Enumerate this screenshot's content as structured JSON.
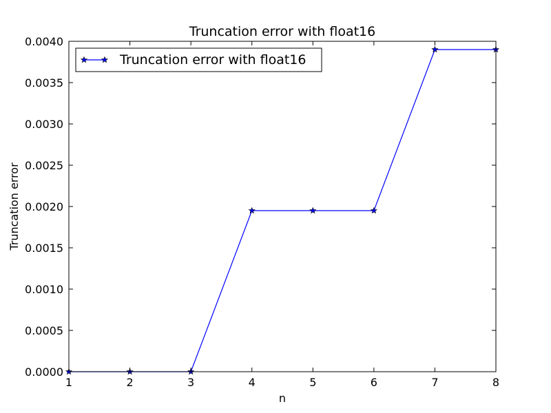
{
  "chart_data": {
    "type": "line",
    "title": "Truncation error with float16",
    "xlabel": "n",
    "ylabel": "Truncation error",
    "xlim": [
      1,
      8
    ],
    "ylim": [
      0,
      0.004
    ],
    "x_ticks": [
      "1",
      "2",
      "3",
      "4",
      "5",
      "6",
      "7",
      "8"
    ],
    "y_ticks": [
      "0.0000",
      "0.0005",
      "0.0010",
      "0.0015",
      "0.0020",
      "0.0025",
      "0.0030",
      "0.0035",
      "0.0040"
    ],
    "grid": false,
    "legend_position": "top-left",
    "series": [
      {
        "name": "Truncation error with float16",
        "color": "#0000ff",
        "marker": "star",
        "x": [
          1,
          2,
          3,
          4,
          5,
          6,
          7,
          8
        ],
        "y": [
          0.0,
          0.0,
          0.0,
          0.00195,
          0.00195,
          0.00195,
          0.0039,
          0.0039
        ]
      }
    ]
  }
}
